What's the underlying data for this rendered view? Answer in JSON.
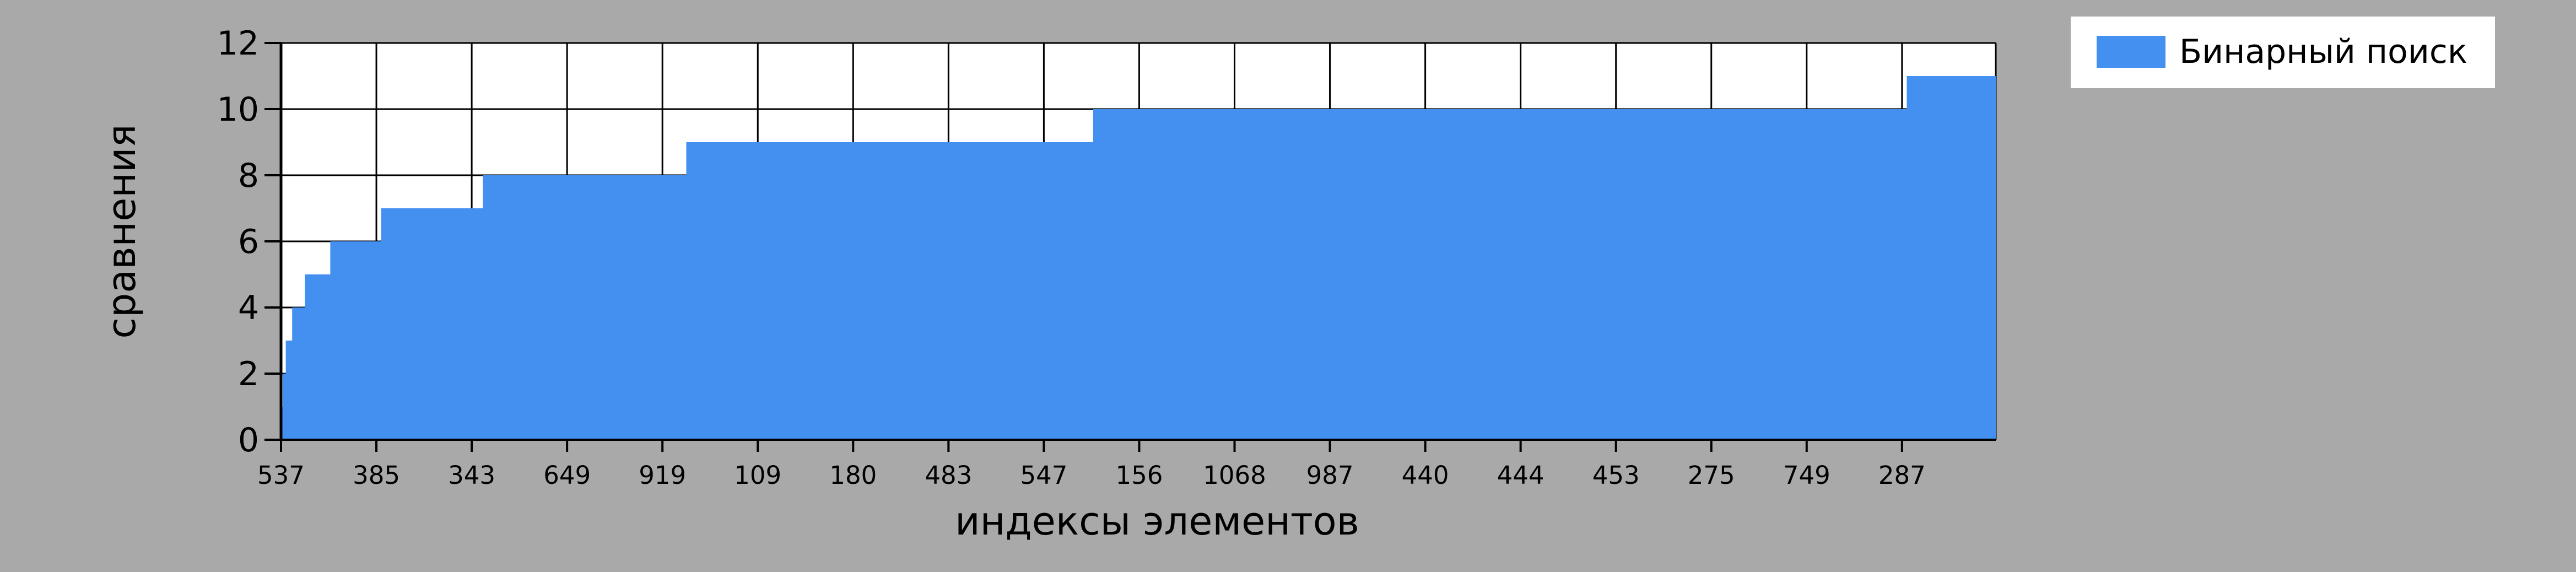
{
  "chart_data": {
    "type": "bar",
    "title": "",
    "xlabel": "индексы элементов",
    "ylabel": "сравнения",
    "ylim": [
      0,
      12
    ],
    "yticks": [
      0,
      2,
      4,
      6,
      8,
      10,
      12
    ],
    "xtick_labels": [
      "537",
      "385",
      "343",
      "649",
      "919",
      "109",
      "180",
      "483",
      "547",
      "156",
      "1068",
      "987",
      "440",
      "444",
      "453",
      "275",
      "749",
      "287"
    ],
    "num_elements": 1079,
    "xtick_step": 60,
    "grid": true,
    "legend_position": "top-right",
    "series": [
      {
        "name": "Бинарный поиск",
        "color": "#4390f0",
        "steps": [
          {
            "value": 1,
            "count": 1
          },
          {
            "value": 2,
            "count": 2
          },
          {
            "value": 3,
            "count": 4
          },
          {
            "value": 4,
            "count": 8
          },
          {
            "value": 5,
            "count": 16
          },
          {
            "value": 6,
            "count": 32
          },
          {
            "value": 7,
            "count": 64
          },
          {
            "value": 8,
            "count": 128
          },
          {
            "value": 9,
            "count": 256
          },
          {
            "value": 10,
            "count": 512
          },
          {
            "value": 11,
            "count": 56
          }
        ]
      }
    ]
  }
}
